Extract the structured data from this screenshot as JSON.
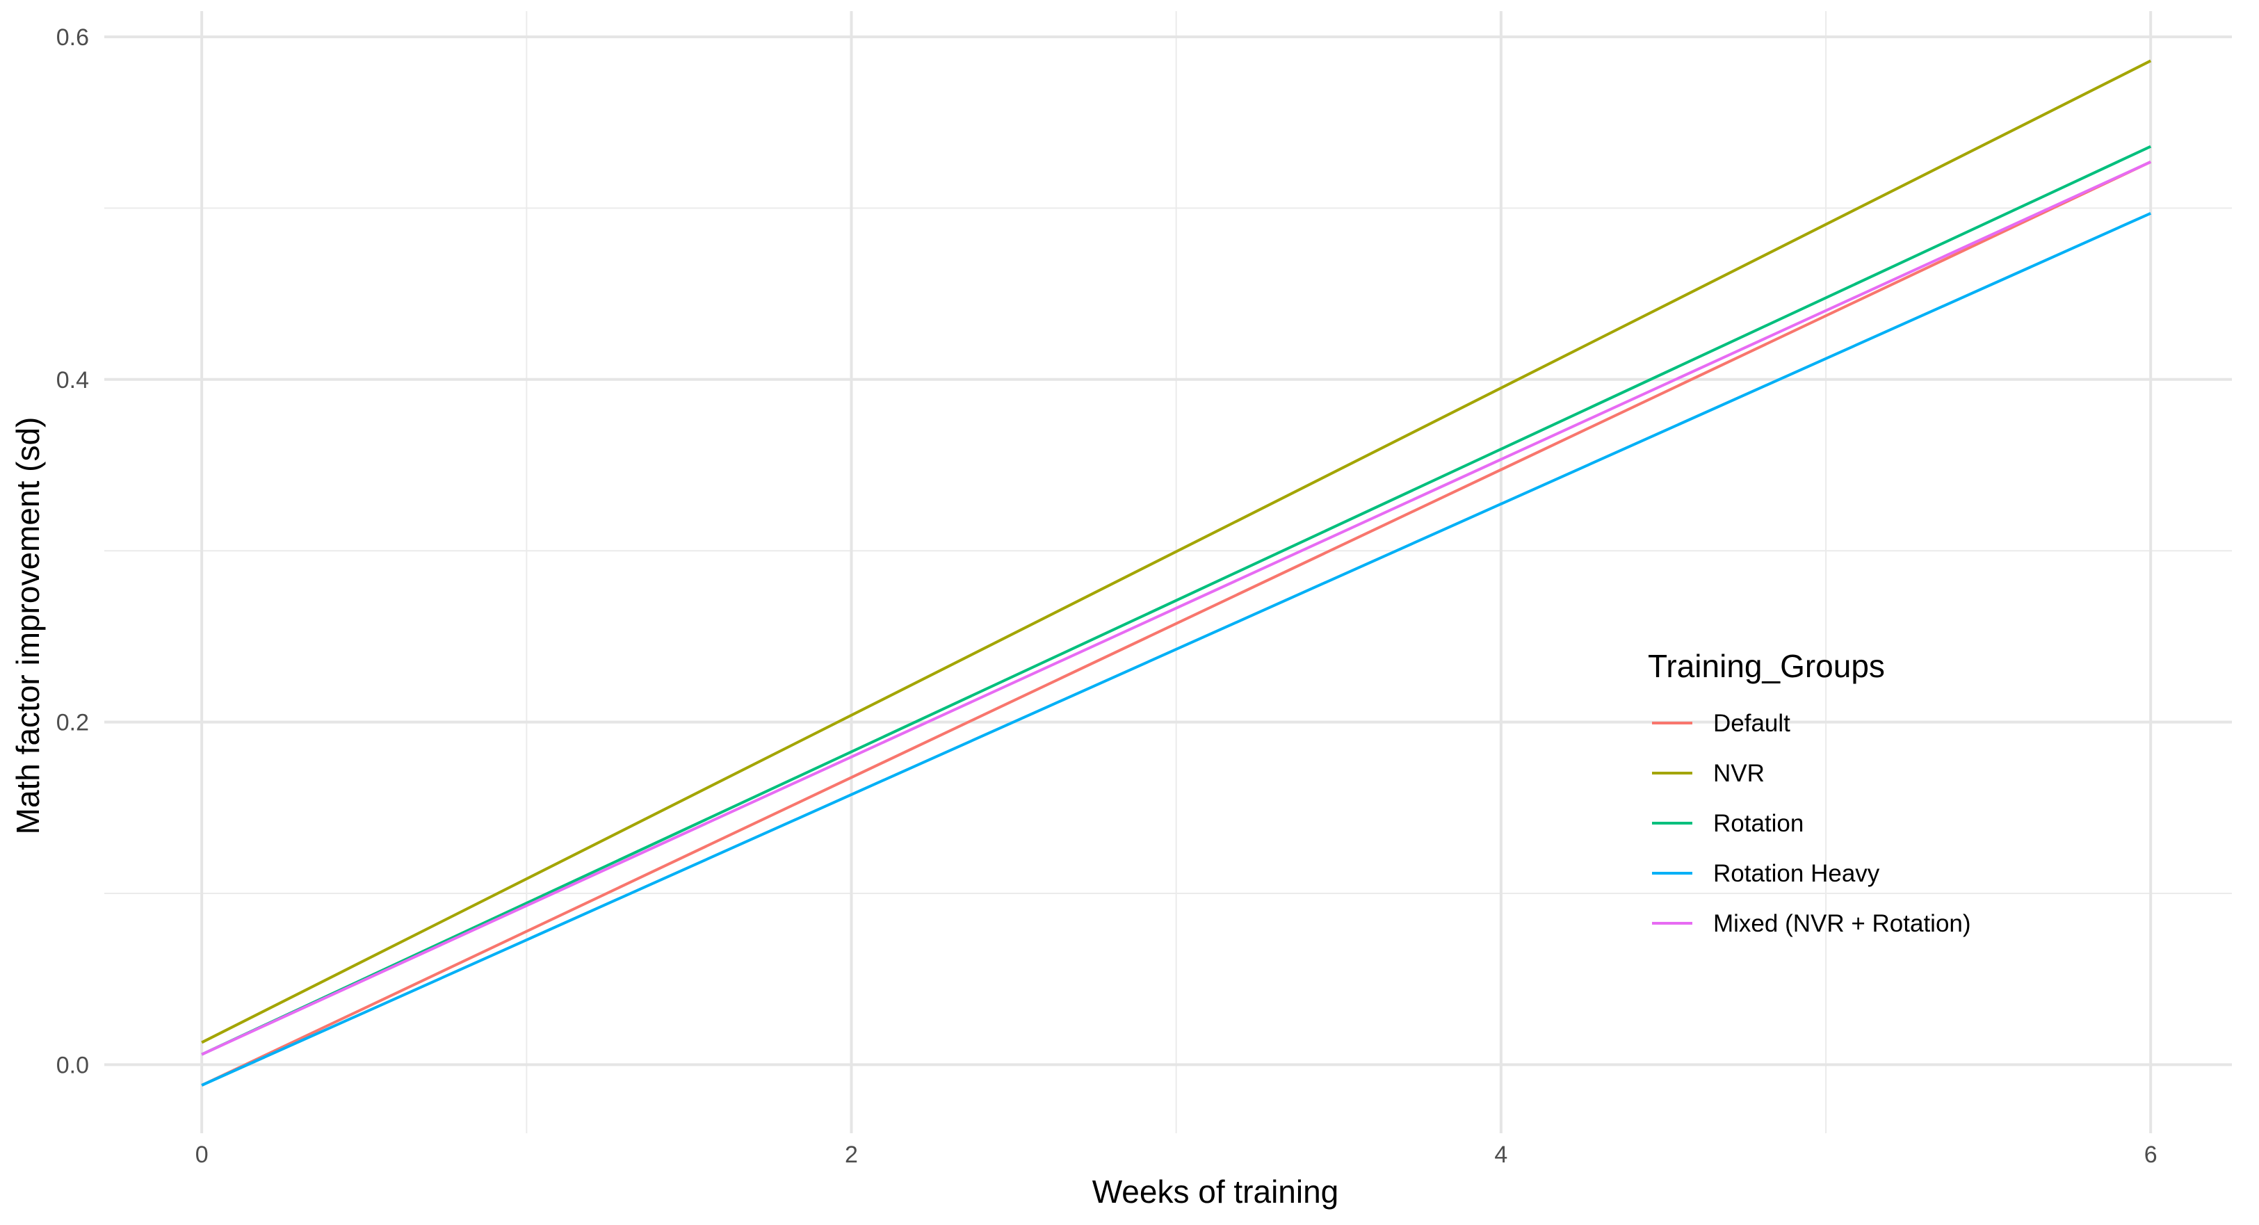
{
  "chart_data": {
    "type": "line",
    "xlabel": "Weeks of training",
    "ylabel": "Math factor improvement (sd)",
    "xlim": [
      -0.3,
      6.25
    ],
    "ylim": [
      -0.04,
      0.615
    ],
    "x_ticks": [
      0,
      2,
      4,
      6
    ],
    "y_ticks": [
      0.0,
      0.2,
      0.4,
      0.6
    ],
    "x_tick_labels": [
      "0",
      "2",
      "4",
      "6"
    ],
    "y_tick_labels": [
      "0.0",
      "0.2",
      "0.4",
      "0.6"
    ],
    "x_minor_ticks": [
      1,
      3,
      5
    ],
    "y_minor_ticks": [
      0.1,
      0.3,
      0.5
    ],
    "grid": true,
    "legend": {
      "title": "Training_Groups",
      "position": "right-center inside"
    },
    "series": [
      {
        "name": "Default",
        "color": "#F8766D",
        "x": [
          0,
          6
        ],
        "y": [
          -0.012,
          0.527
        ]
      },
      {
        "name": "NVR",
        "color": "#A3A500",
        "x": [
          0,
          6
        ],
        "y": [
          0.013,
          0.586
        ]
      },
      {
        "name": "Rotation",
        "color": "#00BF7D",
        "x": [
          0,
          6
        ],
        "y": [
          0.006,
          0.536
        ]
      },
      {
        "name": "Rotation Heavy",
        "color": "#00B0F6",
        "x": [
          0,
          6
        ],
        "y": [
          -0.012,
          0.497
        ]
      },
      {
        "name": "Mixed (NVR + Rotation)",
        "color": "#E76BF3",
        "x": [
          0,
          6
        ],
        "y": [
          0.006,
          0.527
        ]
      }
    ]
  }
}
